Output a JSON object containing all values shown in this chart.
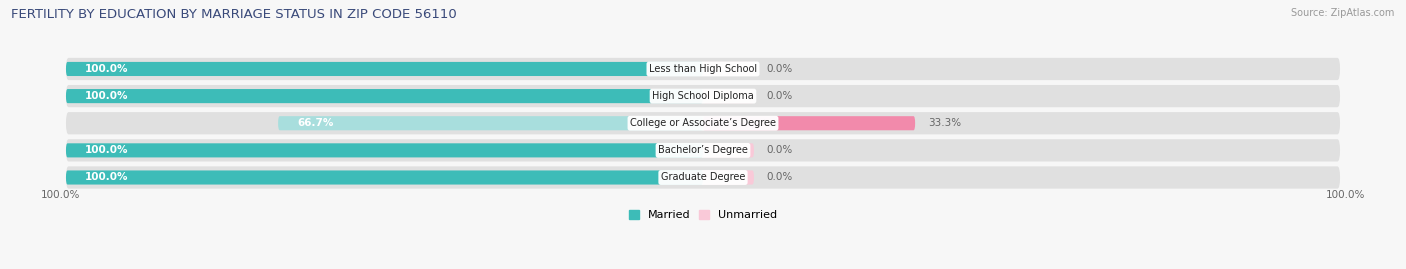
{
  "title": "FERTILITY BY EDUCATION BY MARRIAGE STATUS IN ZIP CODE 56110",
  "source": "Source: ZipAtlas.com",
  "categories": [
    "Less than High School",
    "High School Diploma",
    "College or Associate’s Degree",
    "Bachelor’s Degree",
    "Graduate Degree"
  ],
  "married_pct": [
    100.0,
    100.0,
    66.7,
    100.0,
    100.0
  ],
  "unmarried_pct": [
    0.0,
    0.0,
    33.3,
    0.0,
    0.0
  ],
  "married_color_full": "#3dbcb8",
  "married_color_light": "#a8dedd",
  "unmarried_color_full": "#f28aab",
  "unmarried_color_light": "#f9c9d8",
  "bar_bg_color": "#e0e0e0",
  "background_color": "#f7f7f7",
  "title_color": "#3a4a7a",
  "source_color": "#999999",
  "label_white": "#ffffff",
  "label_dark": "#666666",
  "axis_label_left": "100.0%",
  "axis_label_right": "100.0%",
  "legend_married": "Married",
  "legend_unmarried": "Unmarried",
  "title_fontsize": 9.5,
  "source_fontsize": 7,
  "bar_label_fontsize": 7.5,
  "category_fontsize": 7,
  "axis_fontsize": 7.5
}
